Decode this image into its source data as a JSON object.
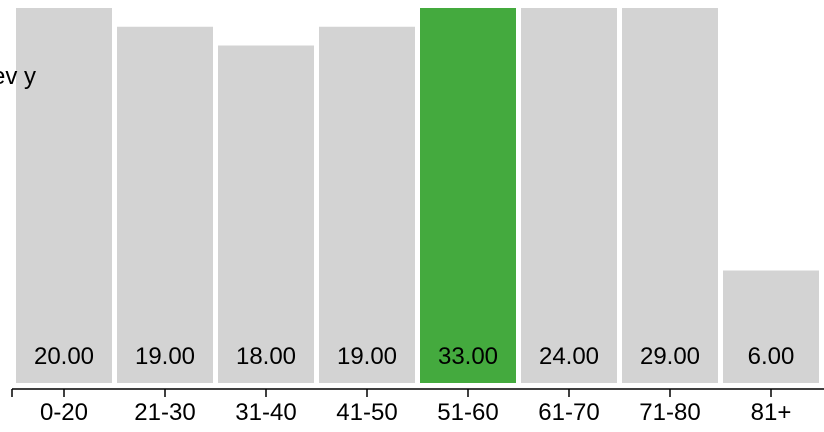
{
  "chart_data": {
    "type": "bar",
    "categories": [
      "0-20",
      "21-30",
      "31-40",
      "41-50",
      "51-60",
      "61-70",
      "71-80",
      "81+"
    ],
    "values": [
      20.0,
      19.0,
      18.0,
      19.0,
      33.0,
      24.0,
      29.0,
      6.0
    ],
    "value_labels": [
      "20.00",
      "19.00",
      "18.00",
      "19.00",
      "33.00",
      "24.00",
      "29.00",
      "6.00"
    ],
    "highlight_index": 4,
    "ylim": [
      0,
      20
    ],
    "colors": {
      "bar": "#d3d3d3",
      "highlight": "#44aa3e",
      "axis": "#000000",
      "text": "#000000"
    },
    "title": "",
    "xlabel": "",
    "ylabel": "",
    "partial_overlay_text": "ev   y"
  }
}
